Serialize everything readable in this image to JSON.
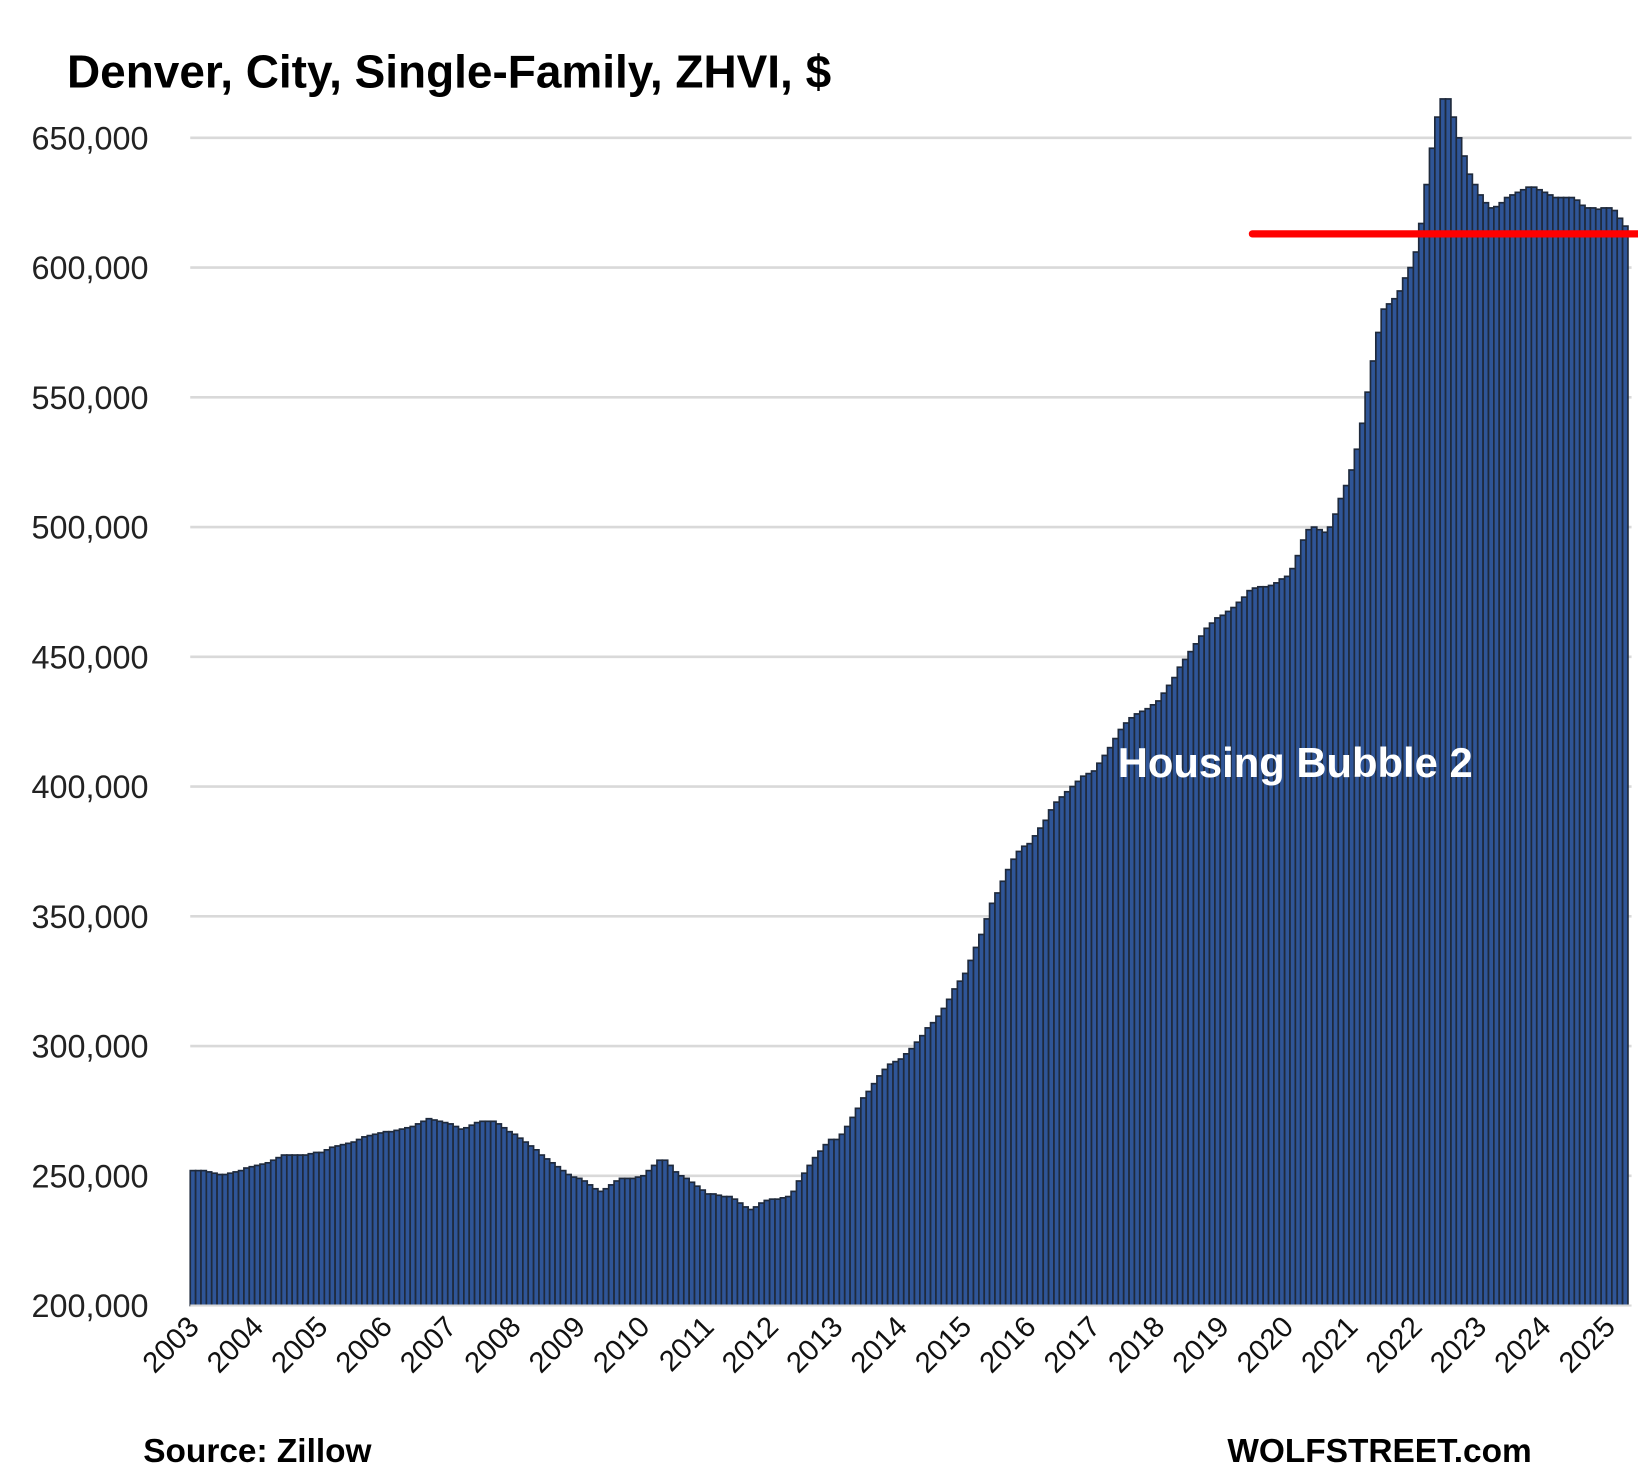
{
  "chart_data": {
    "type": "bar",
    "title": "Denver, City, Single-Family, ZHVI, $",
    "xlabel": "",
    "ylabel": "",
    "ylim": [
      200000,
      650000
    ],
    "yticks": [
      "200,000",
      "250,000",
      "300,000",
      "350,000",
      "400,000",
      "450,000",
      "500,000",
      "550,000",
      "600,000",
      "650,000"
    ],
    "ytick_values": [
      200000,
      250000,
      300000,
      350000,
      400000,
      450000,
      500000,
      550000,
      600000,
      650000
    ],
    "xticks": [
      "2003",
      "2004",
      "2005",
      "2006",
      "2007",
      "2008",
      "2009",
      "2010",
      "2011",
      "2012",
      "2013",
      "2014",
      "2015",
      "2016",
      "2017",
      "2018",
      "2019",
      "2020",
      "2021",
      "2022",
      "2023",
      "2024",
      "2025"
    ],
    "grid": true,
    "frequency": "monthly",
    "start": "2003-01",
    "value_scale": 1000,
    "values": [
      252,
      252,
      252,
      251.5,
      251,
      250.5,
      250.5,
      251,
      251.5,
      252,
      253,
      253.5,
      254,
      254.5,
      255,
      256,
      257,
      258,
      258,
      258,
      258,
      258,
      258.5,
      259,
      259,
      260,
      261,
      261.5,
      262,
      262.5,
      263,
      264,
      265,
      265.5,
      266,
      266.5,
      267,
      267,
      267.5,
      268,
      268.5,
      269,
      270,
      271,
      272,
      271.5,
      271,
      270.5,
      270,
      269,
      268,
      268.5,
      269.5,
      270.5,
      271,
      271,
      271,
      270,
      268.5,
      267,
      266,
      264.5,
      263,
      261.5,
      260,
      258,
      256.5,
      255,
      253.5,
      252,
      250.5,
      249.5,
      249,
      248,
      246.5,
      245,
      244,
      245,
      246.5,
      248,
      249,
      249,
      249,
      249.5,
      250,
      252,
      254,
      256,
      256,
      254,
      251.5,
      250,
      249,
      247.5,
      246,
      244.5,
      243,
      243,
      242.5,
      242,
      242,
      241,
      239.5,
      238,
      237,
      238,
      239.5,
      240.5,
      241,
      241,
      241.5,
      242,
      244,
      248,
      251,
      254,
      257,
      259.5,
      262,
      264,
      264,
      266,
      269,
      272.5,
      276,
      280,
      282.5,
      285.5,
      288.5,
      291,
      293,
      294,
      295,
      297,
      299,
      301.5,
      304,
      307,
      309,
      311.5,
      314.5,
      318,
      322,
      325,
      328,
      333,
      338,
      343,
      349,
      355,
      359,
      363.5,
      368,
      372,
      375,
      377,
      378,
      381,
      384,
      387,
      391,
      394,
      396,
      398,
      400,
      402,
      404,
      405,
      406,
      409,
      412,
      415,
      418.5,
      422,
      424.5,
      426.5,
      428,
      429,
      430,
      431.5,
      433,
      436,
      439,
      442,
      446,
      449,
      452,
      455,
      458,
      461,
      463,
      465,
      466,
      467.5,
      469,
      471,
      473,
      475.5,
      476.5,
      477,
      477,
      477.5,
      478.5,
      480,
      481,
      484,
      489,
      495,
      499,
      500,
      499,
      498,
      500,
      505,
      511,
      516,
      522,
      530,
      540,
      552,
      564,
      575,
      584,
      586,
      588,
      591,
      596,
      600,
      606,
      617,
      632,
      646,
      658,
      665,
      665,
      658,
      650,
      643,
      636,
      632,
      628,
      625,
      623,
      623.5,
      625,
      627,
      628,
      629,
      630,
      631,
      631,
      630,
      629,
      628,
      627,
      627,
      627,
      627,
      626,
      624,
      623,
      623,
      622.5,
      623,
      623,
      622,
      619,
      616
    ],
    "reference_line": {
      "value": 613000,
      "start_year": 2019.5,
      "color": "#ff0000"
    },
    "annotations": [
      "Housing Bubble 2"
    ],
    "colors": {
      "bar": "#2f5597",
      "bar_edge": "#1f2a3c",
      "grid": "#d9d9d9"
    }
  },
  "footer": {
    "source": "Source: Zillow",
    "brand": "WOLFSTREET.com"
  }
}
